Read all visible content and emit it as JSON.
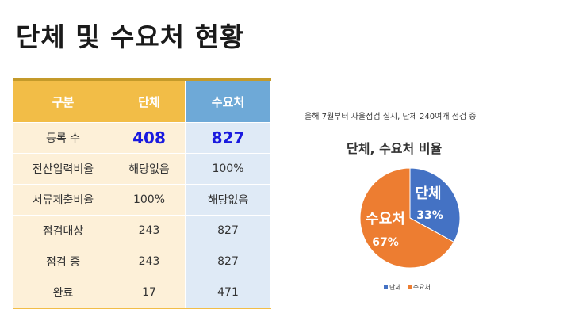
{
  "title": "단체 및 수요처 현황",
  "table": {
    "headers": [
      "구분",
      "단체",
      "수요처"
    ],
    "rows": [
      [
        "등록 수",
        "408",
        "827"
      ],
      [
        "전산입력비율",
        "해당없음",
        "100%"
      ],
      [
        "서류제출비율",
        "100%",
        "해당없음"
      ],
      [
        "점검대상",
        "243",
        "827"
      ],
      [
        "점검 중",
        "243",
        "827"
      ],
      [
        "완료",
        "17",
        "471"
      ]
    ]
  },
  "note": "올해 7월부터 자율점검 실시, 단체 240여개 점검 중",
  "chart_data": {
    "type": "pie",
    "title": "단체, 수요처 비율",
    "categories": [
      "단체",
      "수요처"
    ],
    "values": [
      33,
      67
    ],
    "value_labels": [
      "33%",
      "67%"
    ],
    "colors": [
      "#4472c4",
      "#ed7d31"
    ],
    "legend": "bottom"
  }
}
